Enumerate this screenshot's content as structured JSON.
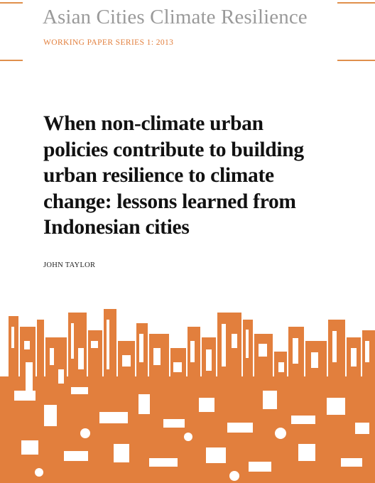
{
  "header": {
    "series_title": "Asian Cities Climate Resilience",
    "series_subtitle": "WORKING PAPER SERIES 1: 2013"
  },
  "cover": {
    "title_lines": [
      "When non-climate urban",
      "policies contribute to building",
      "urban resilience to climate",
      "change: lessons learned from",
      "Indonesian cities"
    ],
    "author": "JOHN TAYLOR"
  },
  "colors": {
    "accent": "#e27f3d",
    "series_title": "#9a9a9a",
    "title_text": "#111111"
  },
  "illustration": {
    "icon": "city-skyline-illustration"
  }
}
